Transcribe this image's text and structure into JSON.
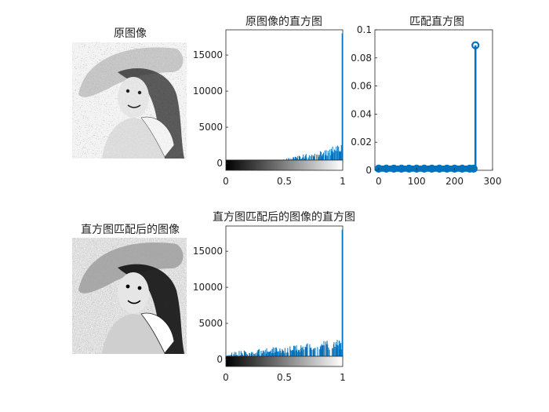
{
  "figure": {
    "original_image_title": "原图像",
    "matched_image_title": "直方图匹配后的图像"
  },
  "chart_data": [
    {
      "type": "bar",
      "title": "原图像的直方图",
      "xlabel": "",
      "ylabel": "",
      "xlim": [
        0,
        1
      ],
      "ylim": [
        0,
        18500
      ],
      "xticks": [
        "0",
        "0.5",
        "1"
      ],
      "yticks": [
        "0",
        "5000",
        "10000",
        "15000"
      ],
      "colorbar": "grayscale",
      "bar_color": "#0072BD",
      "description_values": {
        "x": [
          0.45,
          0.55,
          0.65,
          0.75,
          0.85,
          0.95,
          1.0
        ],
        "values": [
          300,
          700,
          1000,
          1400,
          1700,
          2200,
          18000
        ]
      }
    },
    {
      "type": "stem",
      "title": "匹配直方图",
      "xlabel": "",
      "ylabel": "",
      "xlim": [
        -10,
        300
      ],
      "ylim": [
        0,
        0.1
      ],
      "xticks": [
        "0",
        "100",
        "200",
        "300"
      ],
      "yticks": [
        "0",
        "0.02",
        "0.04",
        "0.06",
        "0.08",
        "0.1"
      ],
      "color": "#0072BD",
      "x": [
        0,
        20,
        40,
        60,
        80,
        100,
        120,
        140,
        160,
        180,
        200,
        220,
        240,
        250,
        255
      ],
      "values": [
        0.0012,
        0.0012,
        0.0012,
        0.0012,
        0.0012,
        0.0012,
        0.0012,
        0.0012,
        0.0012,
        0.0012,
        0.0012,
        0.0012,
        0.0012,
        0.0012,
        0.089
      ]
    },
    {
      "type": "bar",
      "title": "直方图匹配后的图像的直方图",
      "xlabel": "",
      "ylabel": "",
      "xlim": [
        0,
        1
      ],
      "ylim": [
        0,
        18500
      ],
      "xticks": [
        "0",
        "0.5",
        "1"
      ],
      "yticks": [
        "0",
        "5000",
        "10000",
        "15000"
      ],
      "colorbar": "grayscale",
      "bar_color": "#0072BD",
      "description_values": {
        "x": [
          0.0,
          0.1,
          0.3,
          0.5,
          0.7,
          0.9,
          1.0
        ],
        "values": [
          700,
          1000,
          1300,
          1600,
          2000,
          2400,
          18000
        ]
      }
    }
  ]
}
